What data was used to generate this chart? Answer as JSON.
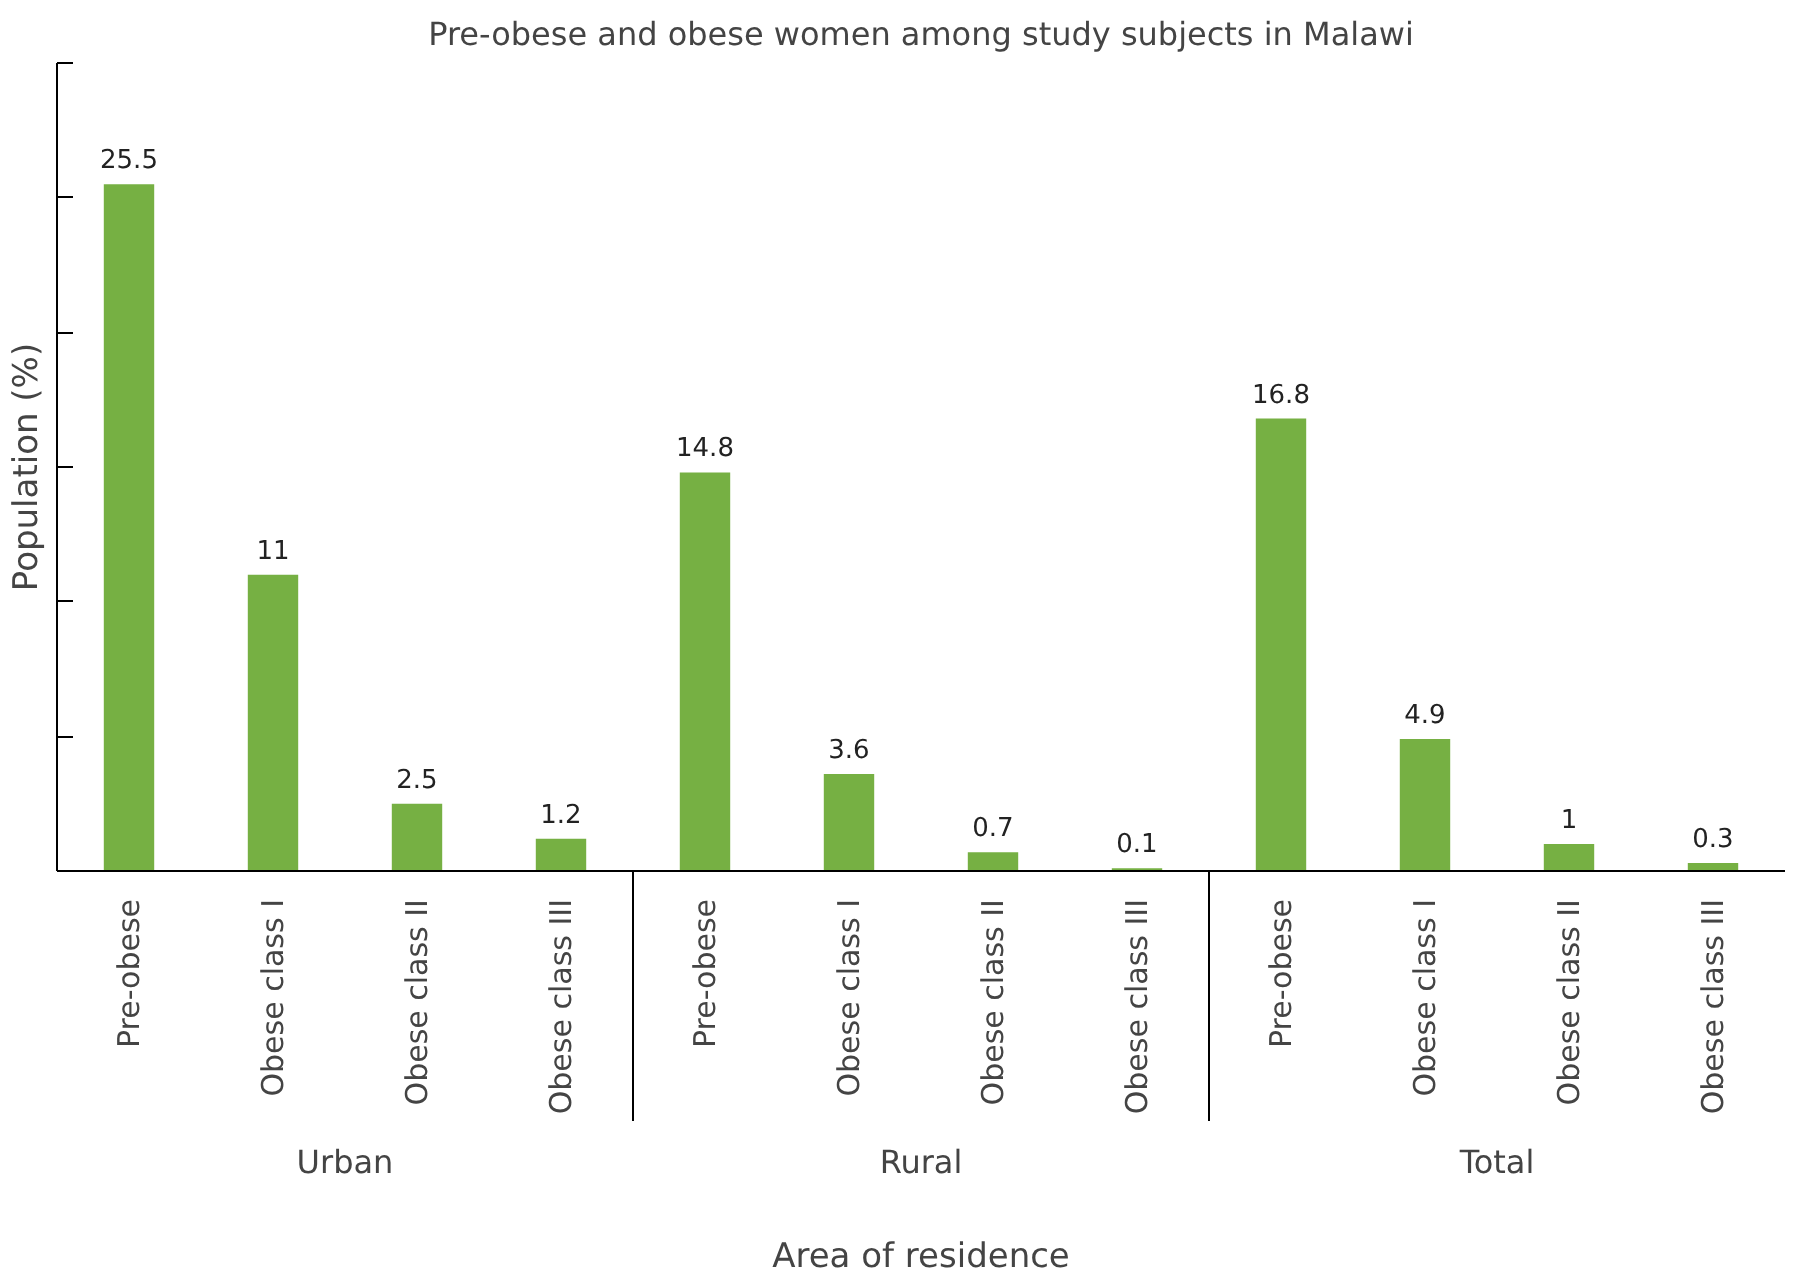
{
  "chart_data": {
    "type": "bar",
    "title": "Pre-obese and obese women among study subjects in Malawi",
    "xlabel": "Area of residence",
    "ylabel": "Population (%)",
    "categories": [
      "Pre-obese",
      "Obese class I",
      "Obese class II",
      "Obese class III",
      "Pre-obese",
      "Obese class I",
      "Obese class II",
      "Obese class III",
      "Pre-obese",
      "Obese class I",
      "Obese class II",
      "Obese class III"
    ],
    "values": [
      25.5,
      11,
      2.5,
      1.2,
      14.8,
      3.6,
      0.7,
      0.1,
      16.8,
      4.9,
      1,
      0.3
    ],
    "color": "#76b043",
    "annotations": [
      "Urban",
      "Rural",
      "Total"
    ],
    "ylim": [
      0,
      30
    ],
    "yticks": [
      {
        "value": 0,
        "label": null
      },
      {
        "value": 5,
        "label": null
      },
      {
        "value": 10,
        "label": null
      },
      {
        "value": 15,
        "label": null
      },
      {
        "value": 20,
        "label": null
      },
      {
        "value": 25,
        "label": null
      },
      {
        "value": 30,
        "label": null
      }
    ],
    "tick_labels": "x",
    "data_labels": true,
    "grid": false
  }
}
